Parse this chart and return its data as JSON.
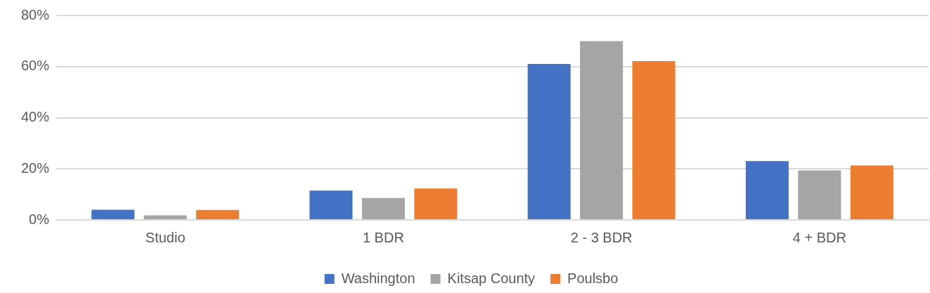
{
  "chart_data": {
    "type": "bar",
    "categories": [
      "Studio",
      "1 BDR",
      "2 - 3 BDR",
      "4 + BDR"
    ],
    "series": [
      {
        "name": "Washington",
        "color": "#4472c4",
        "values": [
          4.0,
          11.5,
          61.0,
          23.0
        ]
      },
      {
        "name": "Kitsap County",
        "color": "#a5a5a5",
        "values": [
          1.8,
          8.6,
          70.0,
          19.4
        ]
      },
      {
        "name": "Poulsbo",
        "color": "#ed7d31",
        "values": [
          3.9,
          12.3,
          62.1,
          21.3
        ]
      }
    ],
    "ylim": [
      0,
      80
    ],
    "yticks": [
      {
        "value": 0,
        "label": "0%"
      },
      {
        "value": 20,
        "label": "20%"
      },
      {
        "value": 40,
        "label": "40%"
      },
      {
        "value": 60,
        "label": "60%"
      },
      {
        "value": 80,
        "label": "80%"
      }
    ],
    "grid": "y",
    "legend": "bottom"
  }
}
